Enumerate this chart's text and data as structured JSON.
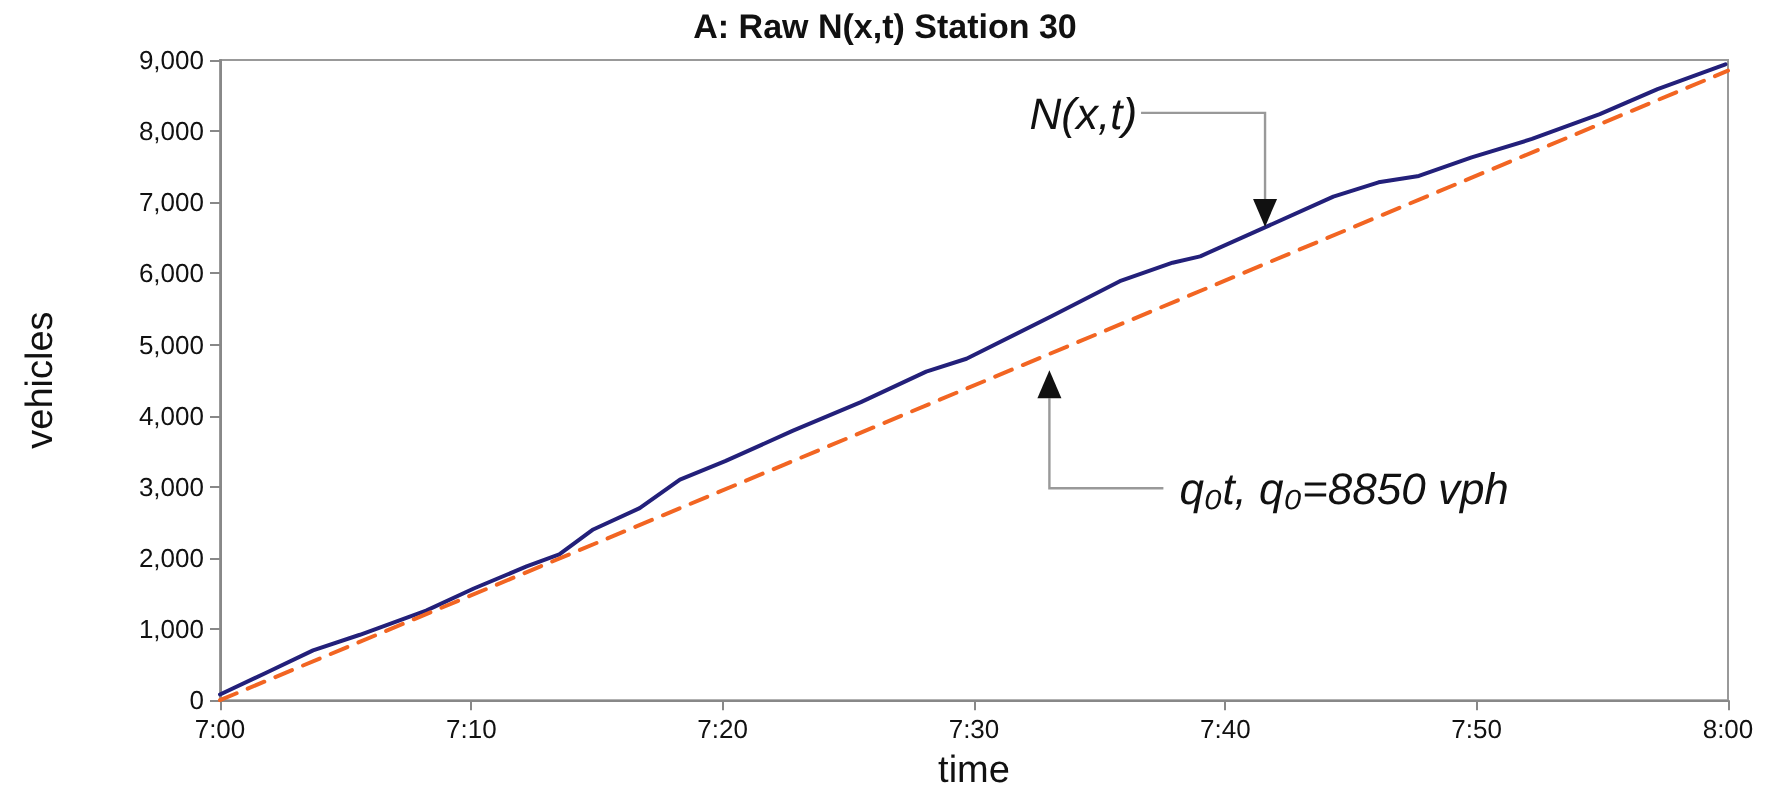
{
  "chart_data": {
    "type": "line",
    "title": "A: Raw N(x,t) Station 30",
    "xlabel": "time",
    "ylabel": "vehicles",
    "xlim": [
      7,
      8
    ],
    "xticks": [
      {
        "value": 7,
        "label": "7:00"
      },
      {
        "value": 7.1667,
        "label": "7:10"
      },
      {
        "value": 7.3333,
        "label": "7:20"
      },
      {
        "value": 7.5,
        "label": "7:30"
      },
      {
        "value": 7.6667,
        "label": "7:40"
      },
      {
        "value": 7.8333,
        "label": "7:50"
      },
      {
        "value": 8,
        "label": "8:00"
      }
    ],
    "ylim": [
      0,
      9000
    ],
    "yticks": [
      {
        "value": 0,
        "label": "0"
      },
      {
        "value": 1000,
        "label": "1,000"
      },
      {
        "value": 2000,
        "label": "2,000"
      },
      {
        "value": 3000,
        "label": "3,000"
      },
      {
        "value": 4000,
        "label": "4,000"
      },
      {
        "value": 5000,
        "label": "5,000"
      },
      {
        "value": 6000,
        "label": "6,000"
      },
      {
        "value": 7000,
        "label": "7,000"
      },
      {
        "value": 8000,
        "label": "8,000"
      },
      {
        "value": 9000,
        "label": "9,000"
      }
    ],
    "series": [
      {
        "color": "#23207a",
        "line_style": "solid",
        "x": [
          7,
          7.031,
          7.0617,
          7.0928,
          7.1367,
          7.1683,
          7.2033,
          7.225,
          7.2475,
          7.2783,
          7.305,
          7.335,
          7.38,
          7.425,
          7.4683,
          7.495,
          7.5517,
          7.5967,
          7.6317,
          7.65,
          7.6933,
          7.7383,
          7.7683,
          7.795,
          7.83,
          7.87,
          7.915,
          7.9533,
          7.9983
        ],
        "values": [
          80,
          390,
          700,
          920,
          1260,
          1570,
          1880,
          2050,
          2400,
          2700,
          3100,
          3360,
          3790,
          4190,
          4620,
          4800,
          5400,
          5890,
          6150,
          6240,
          6650,
          7080,
          7280,
          7370,
          7630,
          7890,
          8240,
          8590,
          8940
        ]
      },
      {
        "color": "#f26522",
        "line_style": "dashed",
        "x": [
          7,
          8
        ],
        "values": [
          0,
          8850
        ]
      }
    ],
    "annotations": [
      "N(x,t)",
      "q₀t, q₀=8850 vph"
    ],
    "grid": false,
    "marker": "none"
  }
}
